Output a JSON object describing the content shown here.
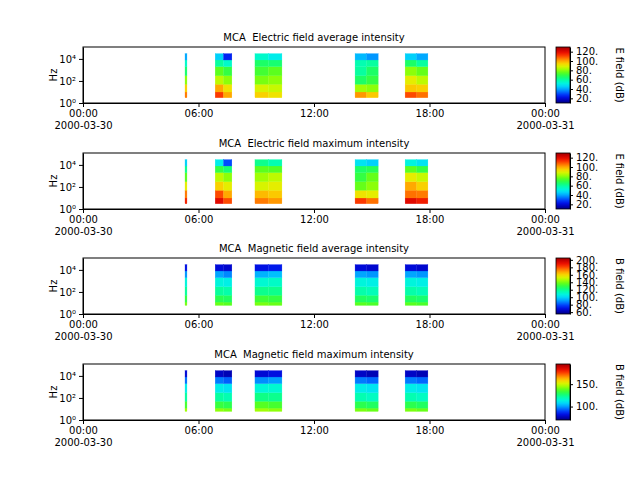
{
  "chart_data": [
    {
      "type": "heatmap",
      "title": "MCA  Electric field average intensity",
      "ylabel": "Hz",
      "log": "y",
      "xlim": [
        "2000-03-30T00:00",
        "2000-03-31T00:00"
      ],
      "xticks": [
        {
          "value": "2000-03-30T00:00",
          "label": "00:00\n2000-03-30"
        },
        {
          "value": "2000-03-30T06:00",
          "label": "06:00"
        },
        {
          "value": "2000-03-30T12:00",
          "label": "12:00"
        },
        {
          "value": "2000-03-30T18:00",
          "label": "18:00"
        },
        {
          "value": "2000-03-31T00:00",
          "label": "00:00\n2000-03-31"
        }
      ],
      "ylim": [
        1,
        120000
      ],
      "yticks": [
        {
          "value": 1,
          "label": "10⁰"
        },
        {
          "value": 100,
          "label": "10²"
        },
        {
          "value": 10000,
          "label": "10⁴"
        }
      ],
      "frequencies": [
        3,
        10,
        50,
        300,
        2000,
        8000,
        30000
      ],
      "columns": [
        {
          "start": "2000-03-30T05:18",
          "end": "2000-03-30T05:24",
          "values": [
            105,
            95,
            80,
            65,
            55,
            40
          ]
        },
        {
          "start": "2000-03-30T06:52",
          "end": "2000-03-30T07:18",
          "values": [
            112,
            100,
            85,
            75,
            60,
            45
          ]
        },
        {
          "start": "2000-03-30T07:18",
          "end": "2000-03-30T07:44",
          "values": [
            100,
            92,
            80,
            70,
            55,
            25
          ]
        },
        {
          "start": "2000-03-30T08:56",
          "end": "2000-03-30T09:38",
          "values": [
            95,
            88,
            78,
            72,
            66,
            55
          ]
        },
        {
          "start": "2000-03-30T09:38",
          "end": "2000-03-30T10:20",
          "values": [
            92,
            86,
            80,
            75,
            65,
            50
          ]
        },
        {
          "start": "2000-03-30T14:08",
          "end": "2000-03-30T14:44",
          "values": [
            102,
            82,
            66,
            60,
            58,
            42
          ]
        },
        {
          "start": "2000-03-30T14:44",
          "end": "2000-03-30T15:20",
          "values": [
            96,
            80,
            70,
            66,
            60,
            38
          ]
        },
        {
          "start": "2000-03-30T16:44",
          "end": "2000-03-30T17:20",
          "values": [
            110,
            96,
            90,
            80,
            66,
            45
          ]
        },
        {
          "start": "2000-03-30T17:20",
          "end": "2000-03-30T17:55",
          "values": [
            106,
            95,
            85,
            76,
            60,
            40
          ]
        }
      ],
      "colorbar": {
        "label": "E field (dB)",
        "range": [
          10,
          130
        ],
        "ticks": [
          {
            "value": 20,
            "label": "20."
          },
          {
            "value": 40,
            "label": "40."
          },
          {
            "value": 60,
            "label": "60."
          },
          {
            "value": 80,
            "label": "80."
          },
          {
            "value": 100,
            "label": "100."
          },
          {
            "value": 120,
            "label": "120."
          }
        ]
      }
    },
    {
      "type": "heatmap",
      "title": "MCA  Electric field maximum intensity",
      "ylabel": "Hz",
      "log": "y",
      "xlim": [
        "2000-03-30T00:00",
        "2000-03-31T00:00"
      ],
      "xticks": [
        {
          "value": "2000-03-30T00:00",
          "label": "00:00\n2000-03-30"
        },
        {
          "value": "2000-03-30T06:00",
          "label": "06:00"
        },
        {
          "value": "2000-03-30T12:00",
          "label": "12:00"
        },
        {
          "value": "2000-03-30T18:00",
          "label": "18:00"
        },
        {
          "value": "2000-03-31T00:00",
          "label": "00:00\n2000-03-31"
        }
      ],
      "ylim": [
        1,
        120000
      ],
      "yticks": [
        {
          "value": 1,
          "label": "10⁰"
        },
        {
          "value": 100,
          "label": "10²"
        },
        {
          "value": 10000,
          "label": "10⁴"
        }
      ],
      "frequencies": [
        3,
        10,
        50,
        300,
        2000,
        8000,
        30000
      ],
      "columns": [
        {
          "start": "2000-03-30T05:18",
          "end": "2000-03-30T05:24",
          "values": [
            115,
            105,
            90,
            75,
            62,
            45
          ]
        },
        {
          "start": "2000-03-30T06:52",
          "end": "2000-03-30T07:18",
          "values": [
            120,
            110,
            95,
            85,
            70,
            50
          ]
        },
        {
          "start": "2000-03-30T07:18",
          "end": "2000-03-30T07:44",
          "values": [
            110,
            100,
            90,
            80,
            65,
            30
          ]
        },
        {
          "start": "2000-03-30T08:56",
          "end": "2000-03-30T09:38",
          "values": [
            105,
            98,
            88,
            82,
            75,
            62
          ]
        },
        {
          "start": "2000-03-30T09:38",
          "end": "2000-03-30T10:20",
          "values": [
            102,
            96,
            90,
            85,
            74,
            58
          ]
        },
        {
          "start": "2000-03-30T14:08",
          "end": "2000-03-30T14:44",
          "values": [
            112,
            92,
            76,
            70,
            66,
            48
          ]
        },
        {
          "start": "2000-03-30T14:44",
          "end": "2000-03-30T15:20",
          "values": [
            106,
            90,
            80,
            76,
            68,
            45
          ]
        },
        {
          "start": "2000-03-30T16:44",
          "end": "2000-03-30T17:20",
          "values": [
            120,
            106,
            100,
            90,
            75,
            52
          ]
        },
        {
          "start": "2000-03-30T17:20",
          "end": "2000-03-30T17:55",
          "values": [
            116,
            105,
            95,
            86,
            70,
            48
          ]
        }
      ],
      "colorbar": {
        "label": "E field (dB)",
        "range": [
          10,
          130
        ],
        "ticks": [
          {
            "value": 20,
            "label": "20."
          },
          {
            "value": 40,
            "label": "40."
          },
          {
            "value": 60,
            "label": "60."
          },
          {
            "value": 80,
            "label": "80."
          },
          {
            "value": 100,
            "label": "100."
          },
          {
            "value": 120,
            "label": "120."
          }
        ]
      }
    },
    {
      "type": "heatmap",
      "title": "MCA  Magnetic field average intensity",
      "ylabel": "Hz",
      "log": "y",
      "xlim": [
        "2000-03-30T00:00",
        "2000-03-31T00:00"
      ],
      "xticks": [
        {
          "value": "2000-03-30T00:00",
          "label": "00:00\n2000-03-30"
        },
        {
          "value": "2000-03-30T06:00",
          "label": "06:00"
        },
        {
          "value": "2000-03-30T12:00",
          "label": "12:00"
        },
        {
          "value": "2000-03-30T18:00",
          "label": "18:00"
        },
        {
          "value": "2000-03-31T00:00",
          "label": "00:00\n2000-03-31"
        }
      ],
      "ylim": [
        1,
        120000
      ],
      "yticks": [
        {
          "value": 1,
          "label": "10⁰"
        },
        {
          "value": 100,
          "label": "10²"
        },
        {
          "value": 10000,
          "label": "10⁴"
        }
      ],
      "frequencies": [
        6,
        12,
        50,
        300,
        2000,
        8000,
        30000
      ],
      "columns": [
        {
          "start": "2000-03-30T05:18",
          "end": "2000-03-30T05:24",
          "values": [
            140,
            130,
            118,
            108,
            90,
            70
          ]
        },
        {
          "start": "2000-03-30T06:52",
          "end": "2000-03-30T07:18",
          "values": [
            138,
            128,
            118,
            108,
            92,
            68
          ]
        },
        {
          "start": "2000-03-30T07:18",
          "end": "2000-03-30T07:44",
          "values": [
            136,
            126,
            116,
            106,
            88,
            66
          ]
        },
        {
          "start": "2000-03-30T08:56",
          "end": "2000-03-30T09:38",
          "values": [
            140,
            132,
            120,
            110,
            94,
            70
          ]
        },
        {
          "start": "2000-03-30T09:38",
          "end": "2000-03-30T10:20",
          "values": [
            138,
            130,
            120,
            112,
            96,
            72
          ]
        },
        {
          "start": "2000-03-30T14:08",
          "end": "2000-03-30T14:44",
          "values": [
            136,
            126,
            116,
            108,
            92,
            68
          ]
        },
        {
          "start": "2000-03-30T14:44",
          "end": "2000-03-30T15:20",
          "values": [
            134,
            124,
            114,
            106,
            90,
            66
          ]
        },
        {
          "start": "2000-03-30T16:44",
          "end": "2000-03-30T17:20",
          "values": [
            136,
            126,
            116,
            108,
            92,
            68
          ]
        },
        {
          "start": "2000-03-30T17:20",
          "end": "2000-03-30T17:55",
          "values": [
            134,
            124,
            114,
            106,
            90,
            66
          ]
        }
      ],
      "colorbar": {
        "label": "B field (dB)",
        "range": [
          55,
          205
        ],
        "ticks": [
          {
            "value": 60,
            "label": "60."
          },
          {
            "value": 80,
            "label": "80."
          },
          {
            "value": 100,
            "label": "100."
          },
          {
            "value": 120,
            "label": "120."
          },
          {
            "value": 140,
            "label": "140."
          },
          {
            "value": 160,
            "label": "160."
          },
          {
            "value": 180,
            "label": "180."
          },
          {
            "value": 200,
            "label": "200."
          }
        ]
      }
    },
    {
      "type": "heatmap",
      "title": "MCA  Magnetic field maximum intensity",
      "ylabel": "Hz",
      "log": "y",
      "xlim": [
        "2000-03-30T00:00",
        "2000-03-31T00:00"
      ],
      "xticks": [
        {
          "value": "2000-03-30T00:00",
          "label": "00:00\n2000-03-30"
        },
        {
          "value": "2000-03-30T06:00",
          "label": "06:00"
        },
        {
          "value": "2000-03-30T12:00",
          "label": "12:00"
        },
        {
          "value": "2000-03-30T18:00",
          "label": "18:00"
        },
        {
          "value": "2000-03-31T00:00",
          "label": "00:00\n2000-03-31"
        }
      ],
      "ylim": [
        1,
        120000
      ],
      "yticks": [
        {
          "value": 1,
          "label": "10⁰"
        },
        {
          "value": 100,
          "label": "10²"
        },
        {
          "value": 10000,
          "label": "10⁴"
        }
      ],
      "frequencies": [
        6,
        12,
        50,
        300,
        2000,
        8000,
        30000
      ],
      "columns": [
        {
          "start": "2000-03-30T05:18",
          "end": "2000-03-30T05:24",
          "values": [
            145,
            135,
            122,
            112,
            95,
            80
          ]
        },
        {
          "start": "2000-03-30T06:52",
          "end": "2000-03-30T07:18",
          "values": [
            143,
            133,
            122,
            112,
            96,
            78
          ]
        },
        {
          "start": "2000-03-30T07:18",
          "end": "2000-03-30T07:44",
          "values": [
            141,
            131,
            120,
            110,
            93,
            76
          ]
        },
        {
          "start": "2000-03-30T08:56",
          "end": "2000-03-30T09:38",
          "values": [
            145,
            137,
            125,
            115,
            98,
            80
          ]
        },
        {
          "start": "2000-03-30T09:38",
          "end": "2000-03-30T10:20",
          "values": [
            143,
            135,
            124,
            116,
            100,
            82
          ]
        },
        {
          "start": "2000-03-30T14:08",
          "end": "2000-03-30T14:44",
          "values": [
            141,
            131,
            120,
            112,
            96,
            78
          ]
        },
        {
          "start": "2000-03-30T14:44",
          "end": "2000-03-30T15:20",
          "values": [
            139,
            129,
            118,
            110,
            94,
            76
          ]
        },
        {
          "start": "2000-03-30T16:44",
          "end": "2000-03-30T17:20",
          "values": [
            141,
            131,
            120,
            112,
            96,
            78
          ]
        },
        {
          "start": "2000-03-30T17:20",
          "end": "2000-03-30T17:55",
          "values": [
            139,
            129,
            118,
            110,
            94,
            76
          ]
        }
      ],
      "colorbar": {
        "label": "B field (dB)",
        "range": [
          70,
          195
        ],
        "ticks": [
          {
            "value": 100,
            "label": "100."
          },
          {
            "value": 150,
            "label": "150."
          }
        ]
      }
    }
  ]
}
